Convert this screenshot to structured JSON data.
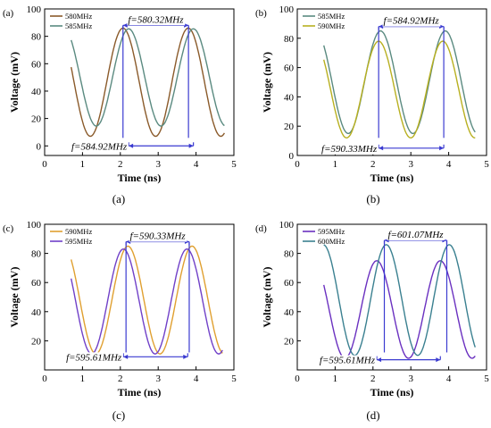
{
  "chart_data": [
    {
      "type": "line",
      "panel_label": "(a)",
      "caption": "(a)",
      "xlabel": "Time (ns)",
      "ylabel": "Voltage (mV)",
      "xlim": [
        0,
        5
      ],
      "ylim": [
        -7,
        100
      ],
      "xticks": [
        0,
        1,
        2,
        3,
        4,
        5
      ],
      "yticks": [
        0,
        20,
        40,
        60,
        80,
        100
      ],
      "grid": false,
      "legend_position": "top-left",
      "series": [
        {
          "name": "580MHz",
          "color": "#8a5a2a",
          "freq_ghz": 0.58032,
          "amp": 39.5,
          "offset": 46.5,
          "peak_t": 2.07,
          "x_range": [
            0.7,
            4.75
          ]
        },
        {
          "name": "585MHz",
          "color": "#5a8a80",
          "freq_ghz": 0.58492,
          "amp": 35.5,
          "offset": 50.0,
          "peak_t": 2.22,
          "x_range": [
            0.7,
            4.75
          ]
        }
      ],
      "annotations": [
        {
          "text": "f=580.32MHz",
          "pos": "top",
          "t1": 2.07,
          "t2": 3.8,
          "level": 88
        },
        {
          "text": "f=584.92MHz",
          "pos": "bottom",
          "t1": 2.22,
          "t2": 3.93,
          "level": 0
        }
      ]
    },
    {
      "type": "line",
      "panel_label": "(b)",
      "caption": "(b)",
      "xlabel": "Time (ns)",
      "ylabel": "Voltage (mV)",
      "xlim": [
        0,
        5
      ],
      "ylim": [
        0,
        100
      ],
      "xticks": [
        0,
        1,
        2,
        3,
        4,
        5
      ],
      "yticks": [
        0,
        20,
        40,
        60,
        80,
        100
      ],
      "grid": false,
      "legend_position": "top-left",
      "series": [
        {
          "name": "585MHz",
          "color": "#5a8a80",
          "freq_ghz": 0.58492,
          "amp": 35.0,
          "offset": 50.0,
          "peak_t": 2.2,
          "x_range": [
            0.7,
            4.7
          ]
        },
        {
          "name": "590MHz",
          "color": "#b8b020",
          "freq_ghz": 0.59033,
          "amp": 33.0,
          "offset": 45.0,
          "peak_t": 2.15,
          "x_range": [
            0.7,
            4.7
          ]
        }
      ],
      "annotations": [
        {
          "text": "f=584.92MHz",
          "pos": "top",
          "t1": 2.15,
          "t2": 3.87,
          "level": 88
        },
        {
          "text": "f=590.33MHz",
          "pos": "bottom",
          "t1": 2.15,
          "t2": 3.87,
          "level": 5
        }
      ]
    },
    {
      "type": "line",
      "panel_label": "(c)",
      "caption": "(c)",
      "xlabel": "Time (ns)",
      "ylabel": "Voltage (mV)",
      "xlim": [
        0,
        5
      ],
      "ylim": [
        0,
        100
      ],
      "xticks": [
        0,
        1,
        2,
        3,
        4,
        5
      ],
      "yticks": [
        20,
        40,
        60,
        80,
        100
      ],
      "grid": false,
      "legend_position": "top-left",
      "series": [
        {
          "name": "590MHz",
          "color": "#e0a030",
          "freq_ghz": 0.59033,
          "amp": 37.0,
          "offset": 48.0,
          "peak_t": 2.2,
          "x_range": [
            0.7,
            4.7
          ]
        },
        {
          "name": "595MHz",
          "color": "#7040c8",
          "freq_ghz": 0.59561,
          "amp": 36.0,
          "offset": 47.0,
          "peak_t": 2.08,
          "x_range": [
            0.7,
            4.7
          ]
        }
      ],
      "annotations": [
        {
          "text": "f=590.33MHz",
          "pos": "top",
          "t1": 2.15,
          "t2": 3.82,
          "level": 88
        },
        {
          "text": "f=595.61MHz",
          "pos": "bottom",
          "t1": 2.08,
          "t2": 3.78,
          "level": 9
        }
      ]
    },
    {
      "type": "line",
      "panel_label": "(d)",
      "caption": "(d)",
      "xlabel": "Time (ns)",
      "ylabel": "Voltage (mV)",
      "xlim": [
        0,
        5
      ],
      "ylim": [
        0,
        100
      ],
      "xticks": [
        0,
        1,
        2,
        3,
        4,
        5
      ],
      "yticks": [
        20,
        40,
        60,
        80,
        100
      ],
      "grid": false,
      "legend_position": "top-left",
      "series": [
        {
          "name": "595MHz",
          "color": "#6a30c0",
          "freq_ghz": 0.59561,
          "amp": 33.5,
          "offset": 41.5,
          "peak_t": 2.1,
          "x_range": [
            0.7,
            4.7
          ]
        },
        {
          "name": "600MHz",
          "color": "#3a8090",
          "freq_ghz": 0.60107,
          "amp": 38.0,
          "offset": 48.0,
          "peak_t": 2.35,
          "x_range": [
            0.7,
            4.7
          ]
        }
      ],
      "annotations": [
        {
          "text": "f=601.07MHz",
          "pos": "top",
          "t1": 2.3,
          "t2": 3.95,
          "level": 89
        },
        {
          "text": "f=595.61MHz",
          "pos": "bottom",
          "t1": 2.1,
          "t2": 3.78,
          "level": 7
        }
      ]
    }
  ]
}
